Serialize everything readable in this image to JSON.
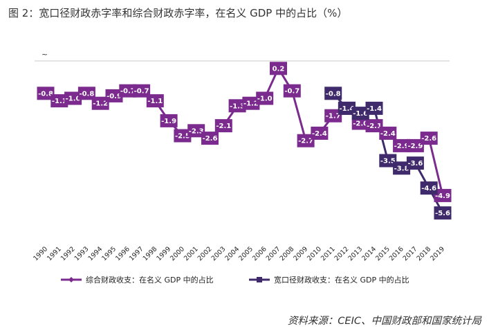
{
  "title": "图 2：宽口径财政赤字率和综合财政赤字率，在名义 GDP 中的占比（%）",
  "source": "资料来源：CEIC、中国财政部和国家统计局",
  "colors": {
    "series1": "#7b2a8e",
    "series2": "#3f2a6b"
  },
  "chart_data": {
    "type": "line",
    "x": [
      "1990",
      "1991",
      "1992",
      "1993",
      "1994",
      "1995",
      "1996",
      "1997",
      "1998",
      "1999",
      "2000",
      "2001",
      "2002",
      "2003",
      "2004",
      "2005",
      "2006",
      "2007",
      "2008",
      "2009",
      "2010",
      "2011",
      "2012",
      "2013",
      "2014",
      "2015",
      "2016",
      "2017",
      "2018",
      "2019"
    ],
    "ylim": [
      -6.5,
      0.5
    ],
    "series": [
      {
        "name": "综合财政收支：在名义 GDP 中的占比",
        "color": "#7b2a8e",
        "marker": "diamond",
        "values": [
          -0.8,
          -1.1,
          -1.0,
          -0.8,
          -1.2,
          -0.9,
          -0.7,
          -0.7,
          -1.1,
          -1.9,
          -2.5,
          -2.3,
          -2.6,
          -2.1,
          -1.3,
          -1.2,
          -1.0,
          0.2,
          -0.7,
          -2.7,
          -2.4,
          -1.7,
          -1.4,
          -2.0,
          -2.1,
          -2.4,
          -2.9,
          -2.9,
          -2.6,
          -4.9
        ],
        "labels": [
          "-0.8",
          "-1.1",
          "-1.0",
          "-0.8",
          "-1.2",
          "-0.9",
          "-0.7",
          "-0.7",
          "-1.1",
          "-1.9",
          "-2.5",
          "-2.3",
          "-2.6",
          "-2.1",
          "-1.3",
          "-1.2",
          "-1.0",
          "0.2",
          "-0.7",
          "-2.7",
          "-2.4",
          "-1.7",
          "-1.4",
          "-2.0",
          "-2.1",
          "-2.4",
          "-2.9",
          "-2.9",
          "-2.6",
          "-4.9"
        ]
      },
      {
        "name": "宽口径财政收支：在名义 GDP 中的占比",
        "color": "#3f2a6b",
        "marker": "square",
        "values": [
          null,
          null,
          null,
          null,
          null,
          null,
          null,
          null,
          null,
          null,
          null,
          null,
          null,
          null,
          null,
          null,
          null,
          null,
          null,
          null,
          null,
          -0.8,
          -1.4,
          -1.6,
          -1.4,
          -3.5,
          -3.8,
          -3.6,
          -4.6,
          -5.6
        ],
        "labels": [
          null,
          null,
          null,
          null,
          null,
          null,
          null,
          null,
          null,
          null,
          null,
          null,
          null,
          null,
          null,
          null,
          null,
          null,
          null,
          null,
          null,
          "-0.8",
          "-1.4",
          "-1.6",
          "-1.4",
          "-3.5",
          "-3.8",
          "-3.6",
          "-4.6",
          "-5.6"
        ]
      }
    ]
  }
}
